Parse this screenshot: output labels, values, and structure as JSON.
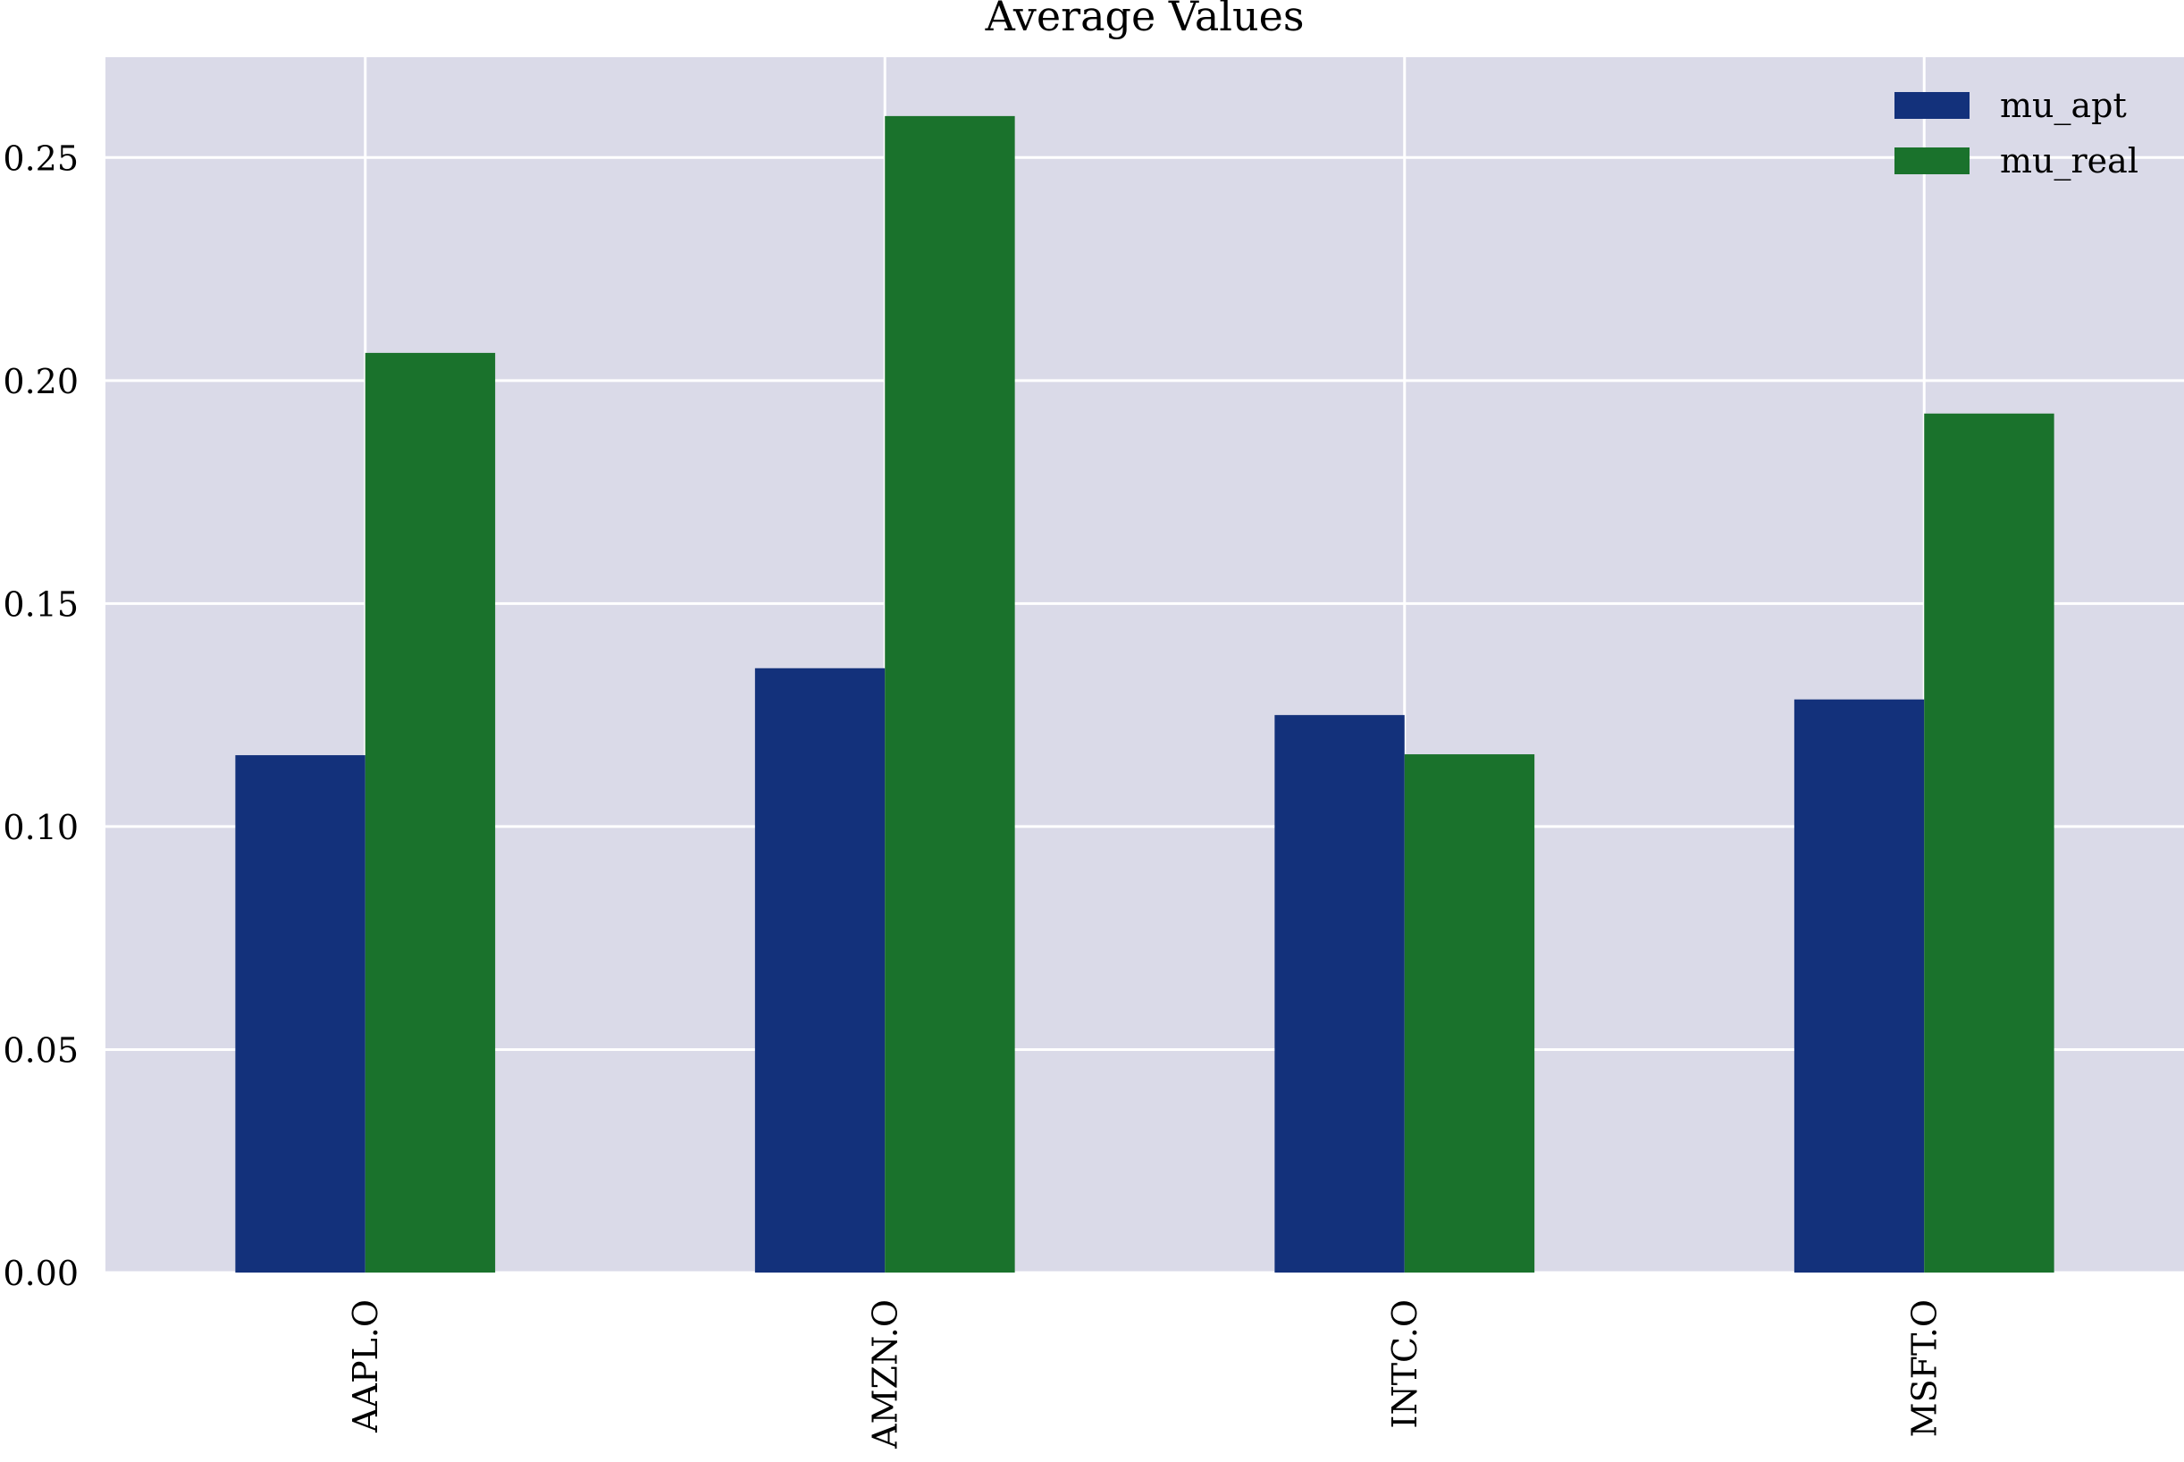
{
  "chart_data": {
    "type": "bar",
    "title": "Average Values",
    "xlabel": "",
    "ylabel": "",
    "categories": [
      "AAPL.O",
      "AMZN.O",
      "INTC.O",
      "MSFT.O"
    ],
    "series": [
      {
        "name": "mu_apt",
        "values": [
          0.116,
          0.1355,
          0.125,
          0.1285
        ],
        "color": "#13317b"
      },
      {
        "name": "mu_real",
        "values": [
          0.2062,
          0.2593,
          0.1162,
          0.1926
        ],
        "color": "#1a722c"
      }
    ],
    "ylim": [
      0,
      0.2725
    ],
    "yticks": [
      "0.00",
      "0.05",
      "0.10",
      "0.15",
      "0.20",
      "0.25"
    ],
    "grid": true,
    "legend_position": "top-right",
    "colors": {
      "plot_background": "#dadaE8",
      "grid": "#ffffff"
    }
  }
}
